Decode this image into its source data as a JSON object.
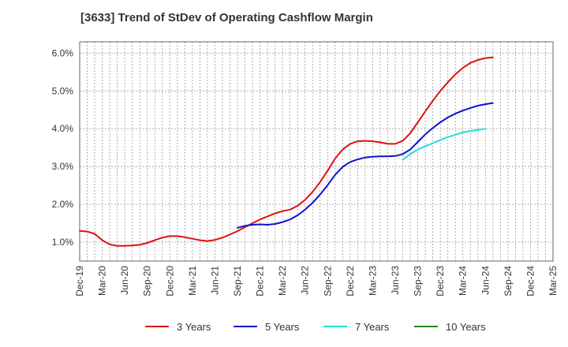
{
  "chart_data": {
    "type": "line",
    "title": "[3633]  Trend of StDev of Operating Cashflow Margin",
    "xlabel": "",
    "ylabel": "",
    "ylim": [
      0.5,
      6.3
    ],
    "yticks": [
      "1.0%",
      "2.0%",
      "3.0%",
      "4.0%",
      "5.0%",
      "6.0%"
    ],
    "ytick_values": [
      1.0,
      2.0,
      3.0,
      4.0,
      5.0,
      6.0
    ],
    "xticks": [
      "Dec-19",
      "Mar-20",
      "Jun-20",
      "Sep-20",
      "Dec-20",
      "Mar-21",
      "Jun-21",
      "Sep-21",
      "Dec-21",
      "Mar-22",
      "Jun-22",
      "Sep-22",
      "Dec-22",
      "Mar-23",
      "Jun-23",
      "Sep-23",
      "Dec-23",
      "Mar-24",
      "Jun-24",
      "Sep-24",
      "Dec-24",
      "Mar-25"
    ],
    "grid": true,
    "legend_position": "bottom",
    "series": [
      {
        "name": "3 Years",
        "color": "#dd1111",
        "start_index": 0,
        "values": [
          1.3,
          1.28,
          1.22,
          1.05,
          0.94,
          0.9,
          0.9,
          0.91,
          0.93,
          0.98,
          1.05,
          1.12,
          1.16,
          1.16,
          1.13,
          1.09,
          1.05,
          1.03,
          1.06,
          1.12,
          1.2,
          1.29,
          1.4,
          1.5,
          1.6,
          1.68,
          1.76,
          1.82,
          1.86,
          1.96,
          2.12,
          2.33,
          2.59,
          2.89,
          3.21,
          3.45,
          3.6,
          3.67,
          3.68,
          3.67,
          3.64,
          3.6,
          3.6,
          3.68,
          3.88,
          4.17,
          4.46,
          4.74,
          5.0,
          5.23,
          5.44,
          5.61,
          5.74,
          5.82,
          5.87,
          5.89
        ]
      },
      {
        "name": "5 Years",
        "color": "#1111cc",
        "start_index": 21,
        "values": [
          1.38,
          1.43,
          1.46,
          1.47,
          1.46,
          1.48,
          1.53,
          1.6,
          1.71,
          1.86,
          2.04,
          2.26,
          2.51,
          2.78,
          2.99,
          3.12,
          3.19,
          3.24,
          3.26,
          3.27,
          3.27,
          3.28,
          3.33,
          3.45,
          3.65,
          3.85,
          4.02,
          4.17,
          4.3,
          4.4,
          4.48,
          4.55,
          4.61,
          4.65,
          4.68
        ]
      },
      {
        "name": "7 Years",
        "color": "#22dddd",
        "start_index": 43,
        "values": [
          3.18,
          3.33,
          3.45,
          3.54,
          3.62,
          3.7,
          3.78,
          3.84,
          3.9,
          3.94,
          3.97,
          4.0
        ]
      },
      {
        "name": "10 Years",
        "color": "#228822",
        "start_index": 0,
        "values": []
      }
    ]
  }
}
